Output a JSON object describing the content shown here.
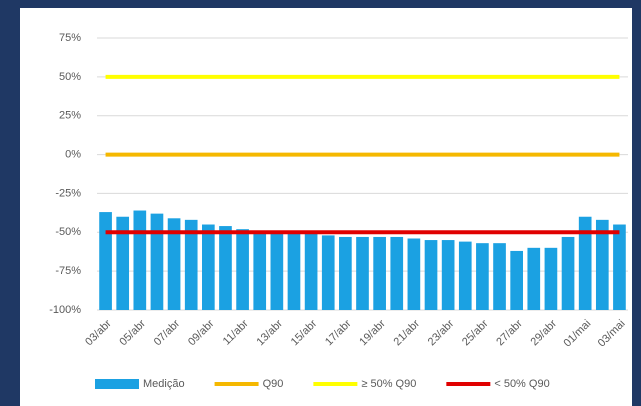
{
  "chart_data": {
    "type": "bar",
    "categories": [
      "03/abr",
      null,
      "05/abr",
      null,
      "07/abr",
      null,
      "09/abr",
      null,
      "11/abr",
      null,
      "13/abr",
      null,
      "15/abr",
      null,
      "17/abr",
      null,
      "19/abr",
      null,
      "21/abr",
      null,
      "23/abr",
      null,
      "25/abr",
      null,
      "27/abr",
      null,
      "29/abr",
      null,
      "01/mai",
      null,
      "03/mai"
    ],
    "series": [
      {
        "name": "Medição",
        "type": "bar",
        "color": "#1ba1e2",
        "values": [
          -37,
          -40,
          -36,
          -38,
          -41,
          -42,
          -45,
          -46,
          -48,
          -50,
          -50,
          -51,
          -51,
          -52,
          -53,
          -53,
          -53,
          -53,
          -54,
          -55,
          -55,
          -56,
          -57,
          -57,
          -62,
          -60,
          -60,
          -53,
          -40,
          -42,
          -45
        ]
      },
      {
        "name": "Q90",
        "type": "line",
        "color": "#f5b800",
        "values": [
          0,
          0,
          0,
          0,
          0,
          0,
          0,
          0,
          0,
          0,
          0,
          0,
          0,
          0,
          0,
          0,
          0,
          0,
          0,
          0,
          0,
          0,
          0,
          0,
          0,
          0,
          0,
          0,
          0,
          0,
          0
        ]
      },
      {
        "name": "≥ 50% Q90",
        "type": "line",
        "color": "#ffff00",
        "values": [
          50,
          50,
          50,
          50,
          50,
          50,
          50,
          50,
          50,
          50,
          50,
          50,
          50,
          50,
          50,
          50,
          50,
          50,
          50,
          50,
          50,
          50,
          50,
          50,
          50,
          50,
          50,
          50,
          50,
          50,
          50
        ]
      },
      {
        "name": "< 50% Q90",
        "type": "line",
        "color": "#e00000",
        "values": [
          -50,
          -50,
          -50,
          -50,
          -50,
          -50,
          -50,
          -50,
          -50,
          -50,
          -50,
          -50,
          -50,
          -50,
          -50,
          -50,
          -50,
          -50,
          -50,
          -50,
          -50,
          -50,
          -50,
          -50,
          -50,
          -50,
          -50,
          -50,
          -50,
          -50,
          -50
        ]
      }
    ],
    "ylim": [
      -100,
      75
    ],
    "yticks": [
      {
        "value": -100,
        "label": "-100%"
      },
      {
        "value": -75,
        "label": "-75%"
      },
      {
        "value": -50,
        "label": "-50%"
      },
      {
        "value": -25,
        "label": "-25%"
      },
      {
        "value": 0,
        "label": "0%"
      },
      {
        "value": 25,
        "label": "25%"
      },
      {
        "value": 50,
        "label": "50%"
      },
      {
        "value": 75,
        "label": "75%"
      }
    ],
    "grid": true,
    "legend": "bottom"
  }
}
